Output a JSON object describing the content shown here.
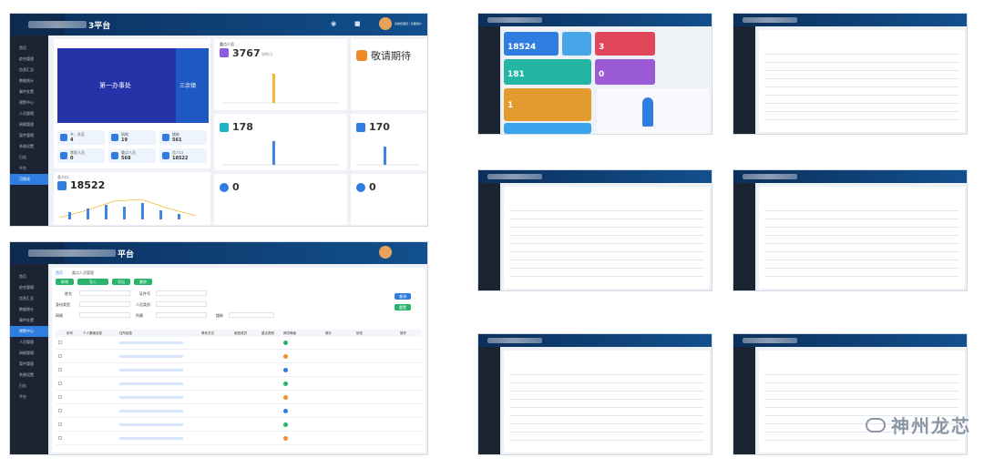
{
  "shot1": {
    "title_suffix": "3平台",
    "header_user_role": "系统管理员 / 管理用户",
    "sidebar": [
      "首页",
      "综合管理",
      "信息汇总",
      "数据统计",
      "事件处置",
      "预警中心",
      "人员管理",
      "网格管理",
      "案件管理",
      "系统设置",
      "日志",
      "平台",
      "可视化"
    ],
    "map": {
      "left_label": "第一办事处",
      "right_label": "三余镇"
    },
    "stats": [
      {
        "label": "乡、社区",
        "value": "4"
      },
      {
        "label": "网格",
        "value": "19"
      },
      {
        "label": "楼栋",
        "value": "561"
      },
      {
        "label": "常驻人员",
        "value": "0"
      },
      {
        "label": "重点人员",
        "value": "568"
      },
      {
        "label": "总人口",
        "value": "18522"
      }
    ],
    "population": {
      "label": "总人口",
      "value": "18522"
    },
    "card_main": {
      "label": "重点人员",
      "value": "3767",
      "note": "较昨日"
    },
    "card_pending": {
      "label": "敬请期待"
    },
    "card_178": {
      "value": "178"
    },
    "card_170": {
      "value": "170"
    },
    "card_zero_a": {
      "value": "0"
    },
    "card_zero_b": {
      "value": "0"
    }
  },
  "shot2": {
    "title_suffix": "平台",
    "tabs": [
      "首页",
      "重点人员管理"
    ],
    "buttons": [
      "新增",
      "导入",
      "导出",
      "删除"
    ],
    "filters": [
      "姓名",
      "证件号",
      "身份类型",
      "人员类别",
      "网格",
      "所属",
      "楼栋"
    ],
    "search_label": "查询",
    "reset_label": "重置",
    "columns": [
      "序号",
      "个人基础信息",
      "住所信息",
      "联系方式",
      "家庭成员",
      "重点类别",
      "风险等级",
      "照片",
      "状态",
      "操作"
    ],
    "rows": 8
  },
  "thumbs": {
    "dash_values": [
      "18524",
      "3",
      "3",
      "181",
      "0",
      "1"
    ]
  },
  "watermark": {
    "text": "神州龙芯"
  },
  "colors": {
    "accent": "#2f7de1",
    "sidebar": "#1b2433",
    "header": "#0b2f5b"
  }
}
